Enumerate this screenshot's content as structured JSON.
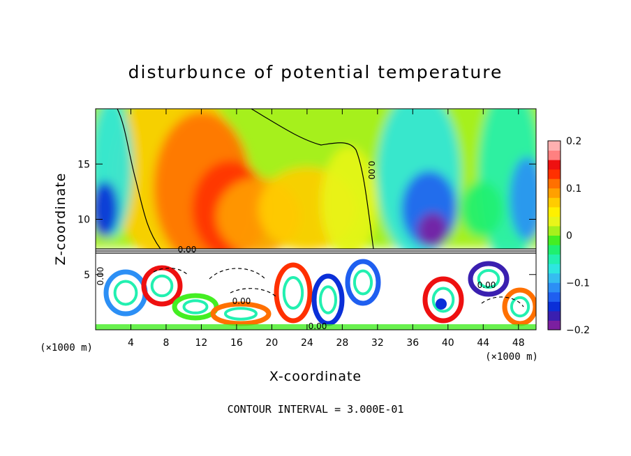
{
  "chart_data": {
    "type": "heatmap",
    "title": "disturbunce of potential temperature",
    "xlabel": "X-coordinate",
    "ylabel": "Z-coordinate",
    "x_unit": "(×1000 m)",
    "y_unit": "(×1000 m)",
    "xlim": [
      0,
      50
    ],
    "ylim": [
      0,
      20
    ],
    "x_ticks": [
      4,
      8,
      12,
      16,
      20,
      24,
      28,
      32,
      36,
      40,
      44,
      48
    ],
    "y_ticks": [
      5,
      10,
      15
    ],
    "colorbar": {
      "min": -0.2,
      "max": 0.2,
      "ticks": [
        "0.2",
        "0.1",
        "0",
        "−0.1",
        "−0.2"
      ],
      "colors": [
        "#7b1fa0",
        "#3a1fb0",
        "#0a2fd8",
        "#1f5ff0",
        "#2c8ff5",
        "#35bdf0",
        "#2ee6e0",
        "#22f0b0",
        "#1ff070",
        "#44ee22",
        "#a6f01c",
        "#e8f51a",
        "#fff000",
        "#ffcc00",
        "#ffa000",
        "#ff7000",
        "#ff3000",
        "#ee1010",
        "#ff8080",
        "#ffb0b0"
      ]
    },
    "contour_labels": [
      "0.00",
      "0.00",
      "0.00",
      "0.00",
      "0.00",
      "0.00"
    ],
    "footer": "CONTOUR INTERVAL = 3.000E-01"
  }
}
